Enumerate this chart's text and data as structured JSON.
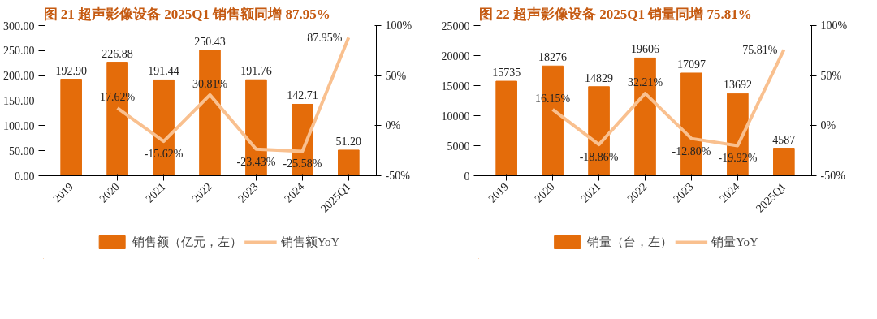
{
  "chart_data": [
    {
      "type": "bar",
      "title": "图 21  超声影像设备 2025Q1 销售额同增 87.95%",
      "categories": [
        "2019",
        "2020",
        "2021",
        "2022",
        "2023",
        "2024",
        "2025Q1"
      ],
      "series": [
        {
          "name": "销售额（亿元，左）",
          "color": "#e46c0a",
          "values": [
            192.9,
            226.88,
            191.44,
            250.43,
            191.76,
            142.71,
            51.2
          ],
          "value_labels": [
            "192.90",
            "226.88",
            "191.44",
            "250.43",
            "191.76",
            "142.71",
            "51.20"
          ]
        },
        {
          "name": "销售额YoY",
          "type": "line",
          "axis": "y2",
          "color": "#f9c08f",
          "values": [
            null,
            17.62,
            -15.62,
            30.81,
            -23.43,
            -25.58,
            87.95
          ],
          "value_labels": [
            null,
            "17.62%",
            "-15.62%",
            "30.81%",
            "-23.43%",
            "-25.58%",
            "87.95%"
          ]
        }
      ],
      "ylim": [
        0,
        300
      ],
      "yticks": [
        {
          "value": 0,
          "label": "0.00"
        },
        {
          "value": 50,
          "label": "50.00"
        },
        {
          "value": 100,
          "label": "100.00"
        },
        {
          "value": 150,
          "label": "150.00"
        },
        {
          "value": 200,
          "label": "200.00"
        },
        {
          "value": 250,
          "label": "250.00"
        },
        {
          "value": 300,
          "label": "300.00"
        }
      ],
      "y2lim": [
        -50,
        100
      ],
      "y2ticks": [
        {
          "value": -50,
          "label": "-50%"
        },
        {
          "value": 0,
          "label": "0%"
        },
        {
          "value": 50,
          "label": "50%"
        },
        {
          "value": 100,
          "label": "100%"
        }
      ],
      "legend": "bottom"
    },
    {
      "type": "bar",
      "title": "图 22  超声影像设备 2025Q1 销量同增 75.81%",
      "categories": [
        "2019",
        "2020",
        "2021",
        "2022",
        "2023",
        "2024",
        "2025Q1"
      ],
      "series": [
        {
          "name": "销量（台，左）",
          "color": "#e46c0a",
          "values": [
            15735,
            18276,
            14829,
            19606,
            17097,
            13692,
            4587
          ],
          "value_labels": [
            "15735",
            "18276",
            "14829",
            "19606",
            "17097",
            "13692",
            "4587"
          ]
        },
        {
          "name": "销量YoY",
          "type": "line",
          "axis": "y2",
          "color": "#f9c08f",
          "values": [
            null,
            16.15,
            -18.86,
            32.21,
            -12.8,
            -19.92,
            75.81
          ],
          "value_labels": [
            null,
            "16.15%",
            "-18.86%",
            "32.21%",
            "-12.80%",
            "-19.92%",
            "75.81%"
          ]
        }
      ],
      "ylim": [
        0,
        25000
      ],
      "yticks": [
        0,
        5000,
        10000,
        15000,
        20000,
        25000
      ],
      "y2lim": [
        -50,
        100
      ],
      "y2ticks": [
        {
          "value": -50,
          "label": "-50%"
        },
        {
          "value": 0,
          "label": "0%"
        },
        {
          "value": 50,
          "label": "50%"
        },
        {
          "value": 100,
          "label": "100%"
        }
      ],
      "legend": "bottom"
    }
  ]
}
